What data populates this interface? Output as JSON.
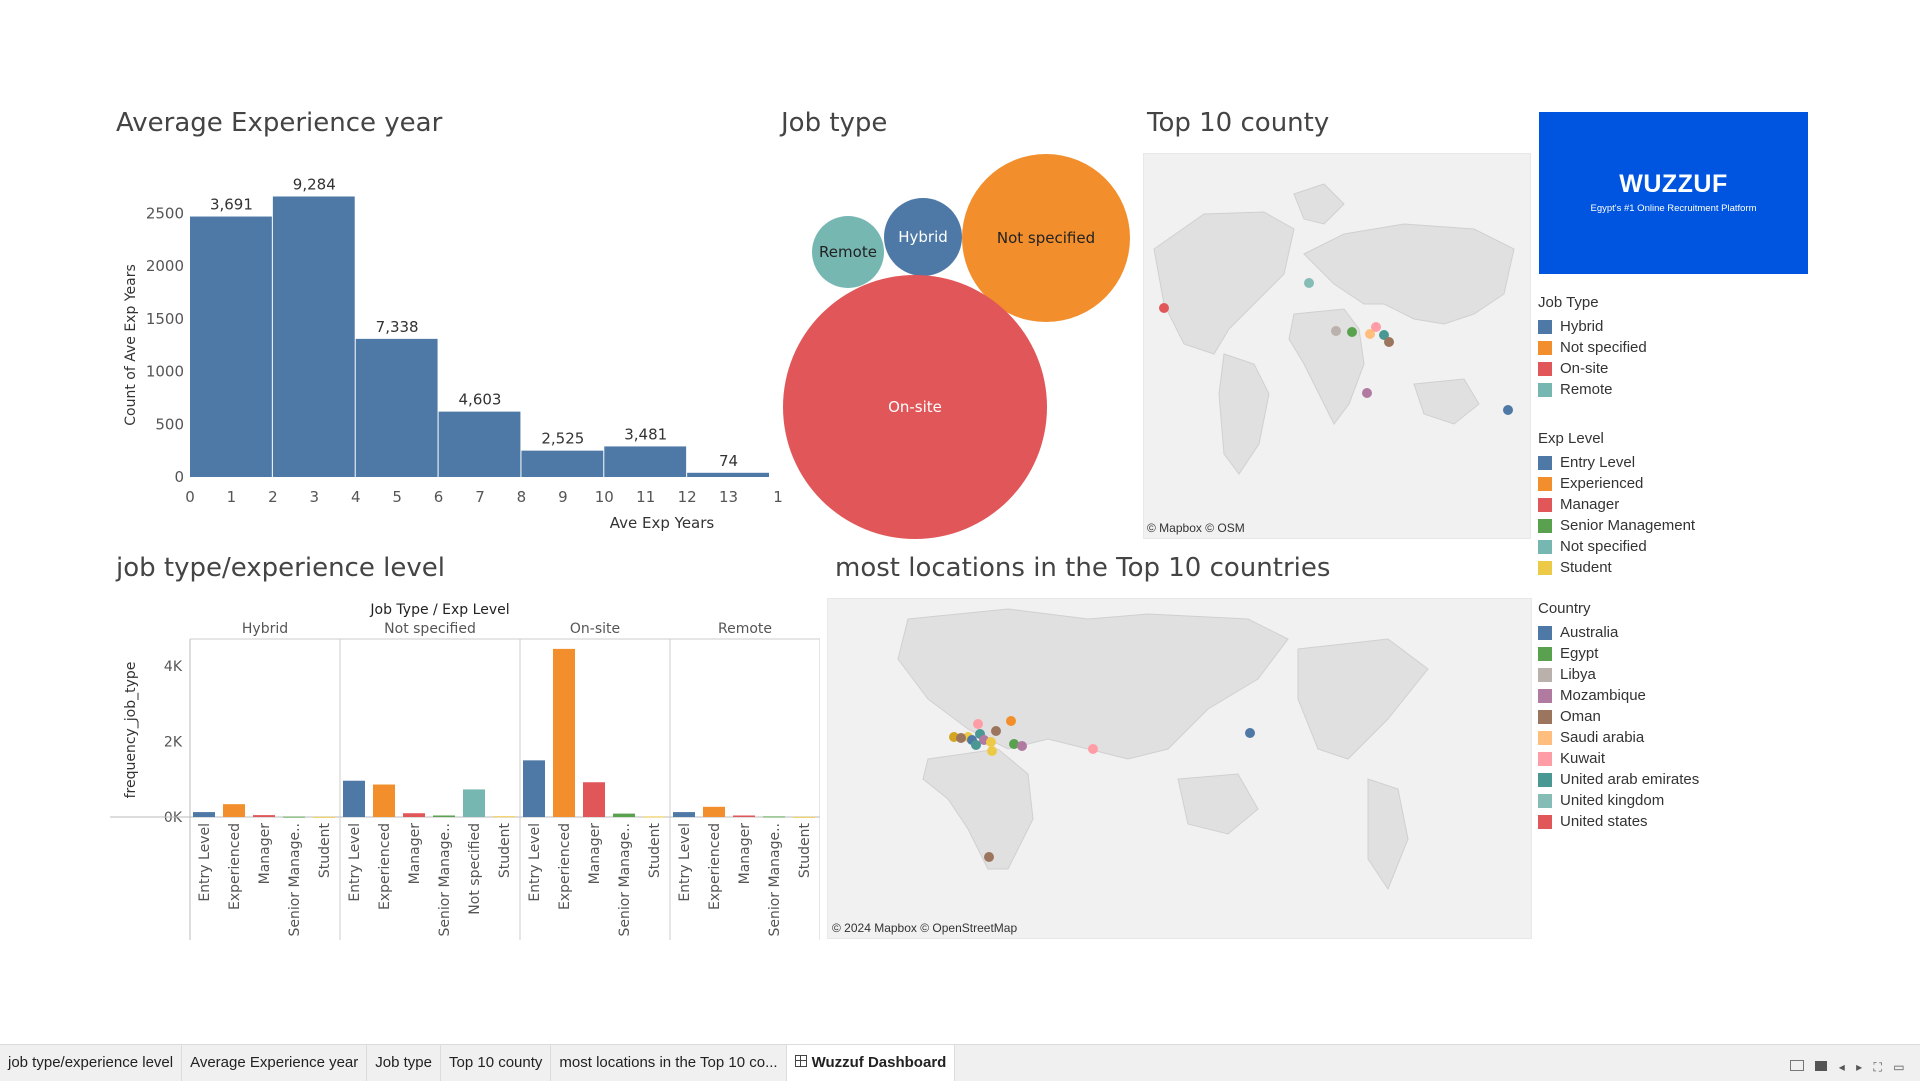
{
  "titles": {
    "avg_exp": "Average Experience year",
    "job_type": "Job type",
    "top10": "Top 10 county",
    "jt_exp": "job type/experience level",
    "locations": "most locations in the Top 10 countries"
  },
  "chart_data": [
    {
      "type": "bar",
      "title": "Average Experience year",
      "xlabel": "Ave Exp Years",
      "ylabel": "Count of Ave Exp Years",
      "ylim": [
        0,
        2750
      ],
      "y_ticks": [
        "2500",
        "2000",
        "1500",
        "1000",
        "500",
        "0"
      ],
      "x_ticks": [
        "0",
        "1",
        "2",
        "3",
        "4",
        "5",
        "6",
        "7",
        "8",
        "9",
        "10",
        "11",
        "12",
        "13",
        "1"
      ],
      "bins": [
        {
          "x0": 0,
          "x1": 2,
          "value": 2470,
          "label": "3,691"
        },
        {
          "x0": 2,
          "x1": 4,
          "value": 2660,
          "label": "9,284"
        },
        {
          "x0": 4,
          "x1": 6,
          "value": 1310,
          "label": "7,338"
        },
        {
          "x0": 6,
          "x1": 8,
          "value": 620,
          "label": "4,603"
        },
        {
          "x0": 8,
          "x1": 10,
          "value": 250,
          "label": "2,525"
        },
        {
          "x0": 10,
          "x1": 12,
          "value": 290,
          "label": "3,481"
        },
        {
          "x0": 12,
          "x1": 14,
          "value": 40,
          "label": "74"
        }
      ],
      "color": "#4e79a7"
    },
    {
      "type": "bubble",
      "title": "Job type",
      "bubbles": [
        {
          "label": "Remote",
          "color": "#76b7b2",
          "text_color": "#222222"
        },
        {
          "label": "Hybrid",
          "color": "#4e79a7",
          "text_color": "#ffffff"
        },
        {
          "label": "Not specified",
          "color": "#f28e2b",
          "text_color": "#222222"
        },
        {
          "label": "On-site",
          "color": "#e15759",
          "text_color": "#ffffff"
        }
      ]
    },
    {
      "type": "bar",
      "title": "job type/experience level",
      "header": "Job Type  /  Exp Level",
      "ylabel": "frequency_job_type",
      "y_ticks": [
        "4K",
        "2K",
        "0K"
      ],
      "ylim": [
        0,
        4500
      ],
      "groups": [
        {
          "name": "Hybrid",
          "bars": [
            {
              "label": "Entry Level",
              "value": 130,
              "color": "#4e79a7"
            },
            {
              "label": "Experienced",
              "value": 340,
              "color": "#f28e2b"
            },
            {
              "label": "Manager",
              "value": 50,
              "color": "#e15759"
            },
            {
              "label": "Senior Manage..",
              "value": 10,
              "color": "#59a14f"
            },
            {
              "label": "Student",
              "value": 5,
              "color": "#edc948"
            }
          ]
        },
        {
          "name": "Not specified",
          "bars": [
            {
              "label": "Entry Level",
              "value": 960,
              "color": "#4e79a7"
            },
            {
              "label": "Experienced",
              "value": 860,
              "color": "#f28e2b"
            },
            {
              "label": "Manager",
              "value": 100,
              "color": "#e15759"
            },
            {
              "label": "Senior Manage..",
              "value": 40,
              "color": "#59a14f"
            },
            {
              "label": "Not specified",
              "value": 730,
              "color": "#76b7b2"
            },
            {
              "label": "Student",
              "value": 20,
              "color": "#edc948"
            }
          ]
        },
        {
          "name": "On-site",
          "bars": [
            {
              "label": "Entry Level",
              "value": 1500,
              "color": "#4e79a7"
            },
            {
              "label": "Experienced",
              "value": 4450,
              "color": "#f28e2b"
            },
            {
              "label": "Manager",
              "value": 920,
              "color": "#e15759"
            },
            {
              "label": "Senior Manage..",
              "value": 90,
              "color": "#59a14f"
            },
            {
              "label": "Student",
              "value": 15,
              "color": "#edc948"
            }
          ]
        },
        {
          "name": "Remote",
          "bars": [
            {
              "label": "Entry Level",
              "value": 130,
              "color": "#4e79a7"
            },
            {
              "label": "Experienced",
              "value": 270,
              "color": "#f28e2b"
            },
            {
              "label": "Manager",
              "value": 40,
              "color": "#e15759"
            },
            {
              "label": "Senior Manage..",
              "value": 15,
              "color": "#59a14f"
            },
            {
              "label": "Student",
              "value": 5,
              "color": "#edc948"
            }
          ]
        }
      ]
    }
  ],
  "maps": {
    "top10_credit": "© Mapbox © OSM",
    "locations_credit": "© 2024 Mapbox © OpenStreetMap"
  },
  "logo": {
    "name": "WUZZUF",
    "tagline": "Egypt's #1 Online Recruitment Platform",
    "color": "#0055e0"
  },
  "legends": {
    "job_type": {
      "title": "Job Type",
      "items": [
        {
          "label": "Hybrid",
          "color": "#4e79a7"
        },
        {
          "label": "Not specified",
          "color": "#f28e2b"
        },
        {
          "label": "On-site",
          "color": "#e15759"
        },
        {
          "label": "Remote",
          "color": "#76b7b2"
        }
      ]
    },
    "exp_level": {
      "title": "Exp Level",
      "items": [
        {
          "label": "Entry Level",
          "color": "#4e79a7"
        },
        {
          "label": "Experienced",
          "color": "#f28e2b"
        },
        {
          "label": "Manager",
          "color": "#e15759"
        },
        {
          "label": "Senior Management",
          "color": "#59a14f"
        },
        {
          "label": "Not specified",
          "color": "#76b7b2"
        },
        {
          "label": "Student",
          "color": "#edc948"
        }
      ]
    },
    "country": {
      "title": "Country",
      "items": [
        {
          "label": "Australia",
          "color": "#4e79a7"
        },
        {
          "label": "Egypt",
          "color": "#59a14f"
        },
        {
          "label": "Libya",
          "color": "#bab0ac"
        },
        {
          "label": "Mozambique",
          "color": "#b07aa1"
        },
        {
          "label": "Oman",
          "color": "#9c755f"
        },
        {
          "label": "Saudi arabia",
          "color": "#ffbe7d"
        },
        {
          "label": "Kuwait",
          "color": "#ff9da7"
        },
        {
          "label": "United arab emirates",
          "color": "#499894"
        },
        {
          "label": "United kingdom",
          "color": "#86bcb6"
        },
        {
          "label": "United states",
          "color": "#e15759"
        }
      ]
    }
  },
  "tabs": [
    {
      "label": "job type/experience level",
      "active": false
    },
    {
      "label": "Average Experience year",
      "active": false
    },
    {
      "label": "Job type",
      "active": false
    },
    {
      "label": "Top 10 county",
      "active": false
    },
    {
      "label": "most locations in the Top 10 co...",
      "active": false
    },
    {
      "label": "Wuzzuf Dashboard",
      "active": true
    }
  ]
}
